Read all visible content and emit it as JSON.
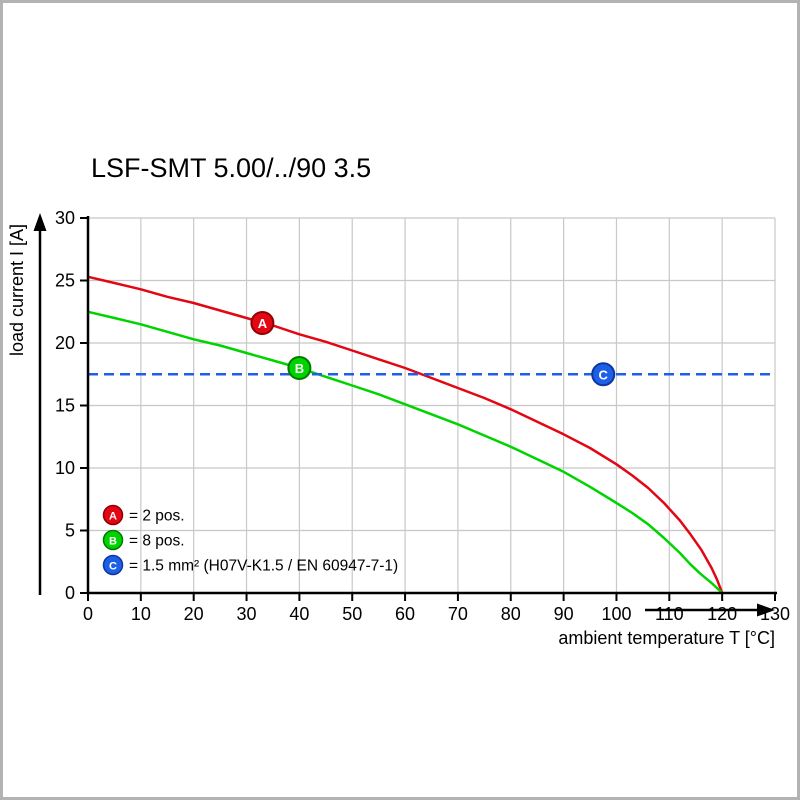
{
  "page": {
    "background": "#ffffff",
    "border_color": "#b3b3b3"
  },
  "chart_data": {
    "type": "line",
    "title": "LSF-SMT 5.00/../90 3.5",
    "xlabel": "ambient temperature T [°C]",
    "ylabel": "load current I [A]",
    "xlim": [
      0,
      130
    ],
    "ylim": [
      0,
      30
    ],
    "x_ticks": [
      0,
      10,
      20,
      30,
      40,
      50,
      60,
      70,
      80,
      90,
      100,
      110,
      120,
      130
    ],
    "y_ticks": [
      0,
      5,
      10,
      15,
      20,
      25,
      30
    ],
    "grid": true,
    "grid_color": "#c8c8c8",
    "axis_color": "#000000",
    "legend_position": "lower-left",
    "series": [
      {
        "name": "A",
        "legend_label": "= 2 pos.",
        "color": "#e30613",
        "edge_color": "#8f0005",
        "x": [
          0,
          5,
          10,
          15,
          20,
          25,
          30,
          35,
          40,
          45,
          50,
          55,
          60,
          65,
          70,
          75,
          80,
          85,
          90,
          95,
          100,
          103,
          106,
          109,
          112,
          114,
          116,
          118,
          119,
          120
        ],
        "y": [
          25.3,
          24.8,
          24.3,
          23.7,
          23.2,
          22.6,
          22.0,
          21.4,
          20.7,
          20.1,
          19.4,
          18.7,
          18.0,
          17.2,
          16.4,
          15.6,
          14.7,
          13.7,
          12.7,
          11.6,
          10.3,
          9.4,
          8.4,
          7.2,
          5.8,
          4.7,
          3.5,
          2.0,
          1.1,
          0
        ]
      },
      {
        "name": "B",
        "legend_label": "= 8 pos.",
        "color": "#00d400",
        "edge_color": "#007a00",
        "x": [
          0,
          5,
          10,
          15,
          20,
          25,
          30,
          35,
          40,
          45,
          50,
          55,
          60,
          65,
          70,
          75,
          80,
          85,
          90,
          95,
          100,
          103,
          106,
          109,
          112,
          114,
          116,
          118,
          119,
          120
        ],
        "y": [
          22.5,
          22.0,
          21.5,
          20.9,
          20.3,
          19.8,
          19.2,
          18.6,
          18.0,
          17.3,
          16.6,
          15.9,
          15.1,
          14.3,
          13.5,
          12.6,
          11.7,
          10.7,
          9.7,
          8.5,
          7.2,
          6.4,
          5.5,
          4.4,
          3.2,
          2.3,
          1.5,
          0.8,
          0.4,
          0
        ]
      },
      {
        "name": "C",
        "legend_label": "= 1.5 mm² (H07V-K1.5 / EN 60947-7-1)",
        "color": "#1e5fe8",
        "edge_color": "#10369e",
        "style": "dashed-hline",
        "value": 17.5
      }
    ],
    "markers": [
      {
        "letter": "A",
        "x": 33,
        "y": 21.6
      },
      {
        "letter": "B",
        "x": 40,
        "y": 18.0
      },
      {
        "letter": "C",
        "x": 97.5,
        "y": 17.5
      }
    ]
  },
  "legend": {
    "items": [
      {
        "letter": "A",
        "label": "= 2 pos."
      },
      {
        "letter": "B",
        "label": "= 8 pos."
      },
      {
        "letter": "C",
        "label": "= 1.5 mm² (H07V-K1.5 / EN 60947-7-1)"
      }
    ]
  }
}
